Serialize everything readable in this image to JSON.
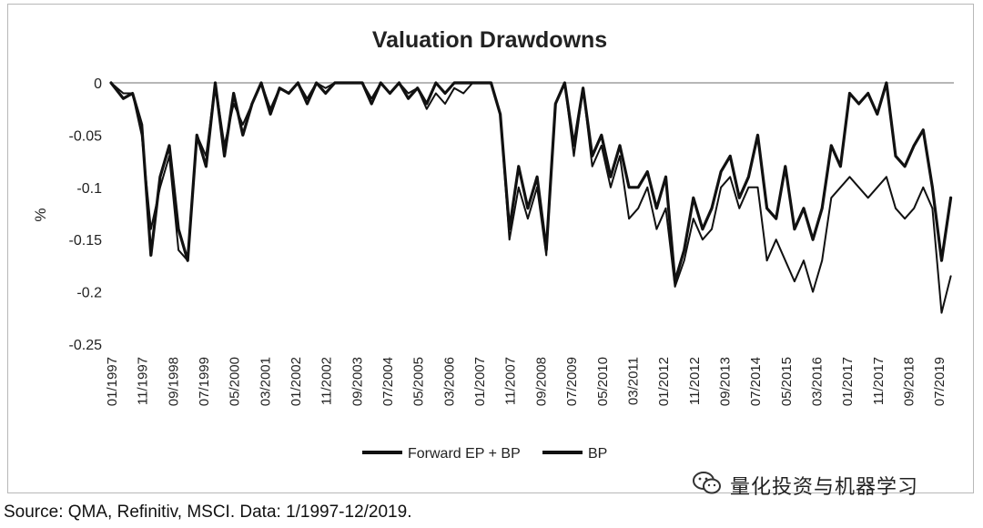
{
  "chart_data": {
    "type": "line",
    "title": "Valuation Drawdowns",
    "ylabel": "%",
    "xlabel": "",
    "ylim": [
      -0.25,
      0
    ],
    "yticks": [
      0,
      -0.05,
      -0.1,
      -0.15,
      -0.2,
      -0.25
    ],
    "ytick_labels": [
      "0",
      "-0.05",
      "-0.1",
      "-0.15",
      "-0.2",
      "-0.25"
    ],
    "xtick_labels": [
      "01/1997",
      "11/1997",
      "09/1998",
      "07/1999",
      "05/2000",
      "03/2001",
      "01/2002",
      "11/2002",
      "09/2003",
      "07/2004",
      "05/2005",
      "03/2006",
      "01/2007",
      "11/2007",
      "09/2008",
      "07/2009",
      "05/2010",
      "03/2011",
      "01/2012",
      "11/2012",
      "09/2013",
      "07/2014",
      "05/2015",
      "03/2016",
      "01/2017",
      "11/2017",
      "09/2018",
      "07/2019"
    ],
    "x": [
      "1997-01",
      "1997-05",
      "1997-08",
      "1997-11",
      "1998-02",
      "1998-05",
      "1998-08",
      "1998-11",
      "1999-02",
      "1999-05",
      "1999-08",
      "1999-11",
      "2000-02",
      "2000-05",
      "2000-08",
      "2000-11",
      "2001-02",
      "2001-05",
      "2001-08",
      "2001-11",
      "2002-02",
      "2002-05",
      "2002-08",
      "2002-11",
      "2003-02",
      "2003-05",
      "2003-08",
      "2003-11",
      "2004-02",
      "2004-05",
      "2004-08",
      "2004-11",
      "2005-02",
      "2005-05",
      "2005-08",
      "2005-11",
      "2006-02",
      "2006-05",
      "2006-08",
      "2006-11",
      "2007-02",
      "2007-05",
      "2007-08",
      "2007-11",
      "2008-02",
      "2008-05",
      "2008-08",
      "2008-11",
      "2009-02",
      "2009-05",
      "2009-08",
      "2009-11",
      "2010-02",
      "2010-05",
      "2010-08",
      "2010-11",
      "2011-02",
      "2011-05",
      "2011-08",
      "2011-11",
      "2012-02",
      "2012-05",
      "2012-08",
      "2012-11",
      "2013-02",
      "2013-05",
      "2013-08",
      "2013-11",
      "2014-02",
      "2014-05",
      "2014-08",
      "2014-11",
      "2015-02",
      "2015-05",
      "2015-08",
      "2015-11",
      "2016-02",
      "2016-05",
      "2016-08",
      "2016-11",
      "2017-02",
      "2017-05",
      "2017-08",
      "2017-11",
      "2018-02",
      "2018-05",
      "2018-08",
      "2018-11",
      "2019-02",
      "2019-05",
      "2019-08",
      "2019-11"
    ],
    "series": [
      {
        "name": "Forward EP + BP",
        "color": "#111111",
        "values": [
          0,
          -0.015,
          -0.01,
          -0.04,
          -0.165,
          -0.09,
          -0.06,
          -0.14,
          -0.17,
          -0.05,
          -0.08,
          0,
          -0.07,
          -0.01,
          -0.05,
          -0.02,
          0,
          -0.03,
          -0.005,
          -0.01,
          0,
          -0.02,
          0,
          -0.01,
          0,
          0,
          0,
          0,
          -0.02,
          0,
          -0.01,
          0,
          -0.015,
          -0.005,
          -0.02,
          0,
          -0.01,
          0,
          0,
          0,
          0,
          0,
          -0.03,
          -0.14,
          -0.08,
          -0.12,
          -0.09,
          -0.16,
          -0.02,
          0,
          -0.06,
          -0.005,
          -0.07,
          -0.05,
          -0.09,
          -0.06,
          -0.1,
          -0.1,
          -0.085,
          -0.12,
          -0.09,
          -0.19,
          -0.16,
          -0.11,
          -0.14,
          -0.12,
          -0.085,
          -0.07,
          -0.11,
          -0.09,
          -0.05,
          -0.12,
          -0.13,
          -0.08,
          -0.14,
          -0.12,
          -0.15,
          -0.12,
          -0.06,
          -0.08,
          -0.01,
          -0.02,
          -0.01,
          -0.03,
          0,
          -0.07,
          -0.08,
          -0.06,
          -0.045,
          -0.1,
          -0.17,
          -0.11
        ]
      },
      {
        "name": "BP",
        "color": "#111111",
        "values": [
          0,
          -0.01,
          -0.01,
          -0.05,
          -0.14,
          -0.1,
          -0.07,
          -0.16,
          -0.17,
          -0.05,
          -0.07,
          0,
          -0.06,
          -0.02,
          -0.04,
          -0.02,
          0,
          -0.025,
          -0.005,
          -0.01,
          0,
          -0.015,
          0,
          -0.005,
          0,
          0,
          0,
          0,
          -0.015,
          0,
          -0.01,
          0,
          -0.01,
          -0.005,
          -0.025,
          -0.01,
          -0.02,
          -0.005,
          -0.01,
          0,
          0,
          0,
          -0.03,
          -0.15,
          -0.1,
          -0.13,
          -0.1,
          -0.165,
          -0.02,
          0,
          -0.07,
          -0.005,
          -0.08,
          -0.06,
          -0.1,
          -0.07,
          -0.13,
          -0.12,
          -0.1,
          -0.14,
          -0.12,
          -0.195,
          -0.17,
          -0.13,
          -0.15,
          -0.14,
          -0.1,
          -0.09,
          -0.12,
          -0.1,
          -0.1,
          -0.17,
          -0.15,
          -0.17,
          -0.19,
          -0.17,
          -0.2,
          -0.17,
          -0.11,
          -0.1,
          -0.09,
          -0.1,
          -0.11,
          -0.1,
          -0.09,
          -0.12,
          -0.13,
          -0.12,
          -0.1,
          -0.12,
          -0.22,
          -0.185
        ]
      }
    ],
    "legend": "bottom",
    "grid": false
  },
  "watermark": {
    "icon": "wechat-icon",
    "text": "量化投资与机器学习"
  },
  "source": "Source: QMA, Refinitiv, MSCI. Data: 1/1997-12/2019."
}
